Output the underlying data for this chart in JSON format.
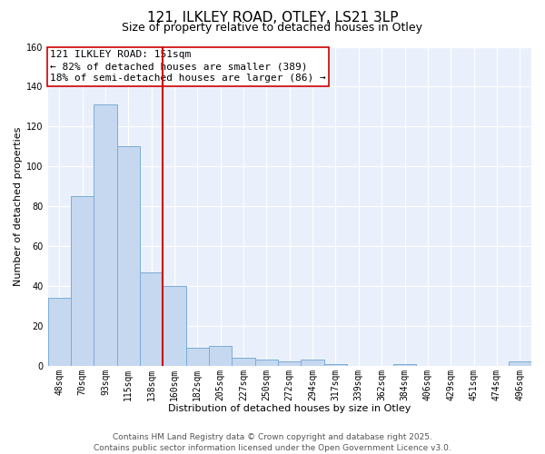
{
  "title": "121, ILKLEY ROAD, OTLEY, LS21 3LP",
  "subtitle": "Size of property relative to detached houses in Otley",
  "xlabel": "Distribution of detached houses by size in Otley",
  "ylabel": "Number of detached properties",
  "bar_labels": [
    "48sqm",
    "70sqm",
    "93sqm",
    "115sqm",
    "138sqm",
    "160sqm",
    "182sqm",
    "205sqm",
    "227sqm",
    "250sqm",
    "272sqm",
    "294sqm",
    "317sqm",
    "339sqm",
    "362sqm",
    "384sqm",
    "406sqm",
    "429sqm",
    "451sqm",
    "474sqm",
    "496sqm"
  ],
  "bar_values": [
    34,
    85,
    131,
    110,
    47,
    40,
    9,
    10,
    4,
    3,
    2,
    3,
    1,
    0,
    0,
    1,
    0,
    0,
    0,
    0,
    2
  ],
  "bar_color": "#c5d8f0",
  "bar_edge_color": "#7aadd4",
  "vline_color": "#cc0000",
  "vline_index": 4.5,
  "annotation_line1": "121 ILKLEY ROAD: 151sqm",
  "annotation_line2": "← 82% of detached houses are smaller (389)",
  "annotation_line3": "18% of semi-detached houses are larger (86) →",
  "annotation_box_facecolor": "#ffffff",
  "annotation_box_edgecolor": "#cc0000",
  "ylim": [
    0,
    160
  ],
  "yticks": [
    0,
    20,
    40,
    60,
    80,
    100,
    120,
    140,
    160
  ],
  "footer_line1": "Contains HM Land Registry data © Crown copyright and database right 2025.",
  "footer_line2": "Contains public sector information licensed under the Open Government Licence v3.0.",
  "fig_facecolor": "#ffffff",
  "plot_facecolor": "#eaf0fb",
  "grid_color": "#ffffff",
  "title_fontsize": 11,
  "subtitle_fontsize": 9,
  "axis_label_fontsize": 8,
  "tick_fontsize": 7,
  "annotation_fontsize": 8,
  "footer_fontsize": 6.5
}
